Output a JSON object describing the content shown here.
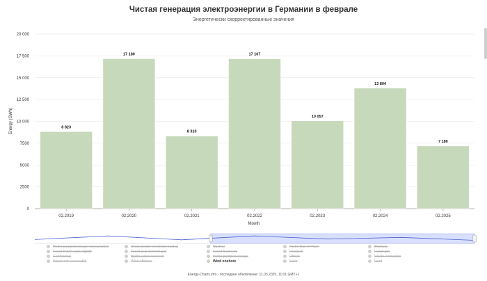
{
  "chart_data": {
    "type": "bar",
    "title": "Чистая генерация электроэнергии в Германии в феврале",
    "subtitle": "Энергетически скорректированные значения",
    "xlabel": "Month",
    "ylabel": "Energy (GWh)",
    "ylim": [
      0,
      20000
    ],
    "yticks": [
      0,
      2500,
      5000,
      7500,
      10000,
      12500,
      15000,
      17500,
      20000
    ],
    "ytick_labels": [
      "0",
      "2500",
      "5000",
      "7500",
      "10 000",
      "12 500",
      "15 000",
      "17 500",
      "20 000"
    ],
    "categories": [
      "02.2019",
      "02.2020",
      "02.2021",
      "02.2022",
      "02.2023",
      "02.2024",
      "02.2025"
    ],
    "series": [
      {
        "name": "Wind onshore",
        "values": [
          8823,
          17180,
          8310,
          17167,
          10057,
          13804,
          7180
        ],
        "labels": [
          "8 823",
          "17 180",
          "8 310",
          "17 167",
          "10 057",
          "13 804",
          "7 180"
        ]
      }
    ],
    "bar_color": "#c7d9bb",
    "grid": true,
    "legend_position": "bottom"
  },
  "navigator_values": [
    8823,
    17180,
    8310,
    17167,
    10057,
    13804,
    7180
  ],
  "legend": {
    "items": [
      {
        "label": "Hydro pumped storage consumption",
        "active": false
      },
      {
        "label": "Fossil brown coal / lignite",
        "active": false
      },
      {
        "label": "Geothermal",
        "active": false
      },
      {
        "label": "Waste non-renewable",
        "active": false
      },
      {
        "label": "Cross border electricity trading",
        "active": false
      },
      {
        "label": "Fossil coal-derived gas",
        "active": false
      },
      {
        "label": "Hydro water reservoir",
        "active": false
      },
      {
        "label": "Wind offshore",
        "active": false
      },
      {
        "label": "Nuclear",
        "active": false
      },
      {
        "label": "Fossil hard coal",
        "active": false
      },
      {
        "label": "Hydro pumped storage",
        "active": false
      },
      {
        "label": "Wind onshore",
        "active": true
      },
      {
        "label": "Hydro Run-of-River",
        "active": false
      },
      {
        "label": "Fossil oil",
        "active": false
      },
      {
        "label": "Others",
        "active": false
      },
      {
        "label": "Solar",
        "active": false
      },
      {
        "label": "Biomass",
        "active": false
      },
      {
        "label": "Fossil gas",
        "active": false
      },
      {
        "label": "Waste renewable",
        "active": false
      },
      {
        "label": "Load",
        "active": false
      }
    ]
  },
  "footer": "Energy-Charts.info - последнее обновление: 11.03.2025, 11:01 GMT+1"
}
